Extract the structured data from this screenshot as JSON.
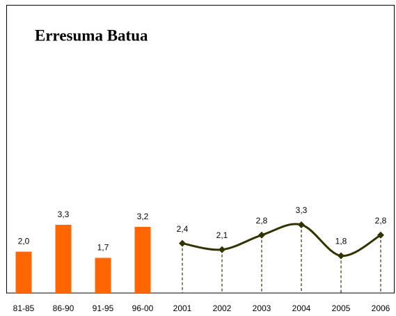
{
  "chart_data": {
    "type": "combo",
    "title": "Erresuma Batua",
    "categories": [
      "81-85",
      "86-90",
      "91-95",
      "96-00",
      "2001",
      "2002",
      "2003",
      "2004",
      "2005",
      "2006"
    ],
    "ylim": [
      0,
      14
    ],
    "series": [
      {
        "type": "bar",
        "color": "#ff6600",
        "values": [
          2.0,
          3.3,
          1.7,
          3.2,
          null,
          null,
          null,
          null,
          null,
          null
        ],
        "value_labels": [
          "2,0",
          "3,3",
          "1,7",
          "3,2",
          null,
          null,
          null,
          null,
          null,
          null
        ]
      },
      {
        "type": "line",
        "color": "#333300",
        "values": [
          null,
          null,
          null,
          null,
          2.4,
          2.1,
          2.8,
          3.3,
          1.8,
          2.8
        ],
        "value_labels": [
          null,
          null,
          null,
          null,
          "2,4",
          "2,1",
          "2,8",
          "3,3",
          "1,8",
          "2,8"
        ]
      }
    ]
  }
}
